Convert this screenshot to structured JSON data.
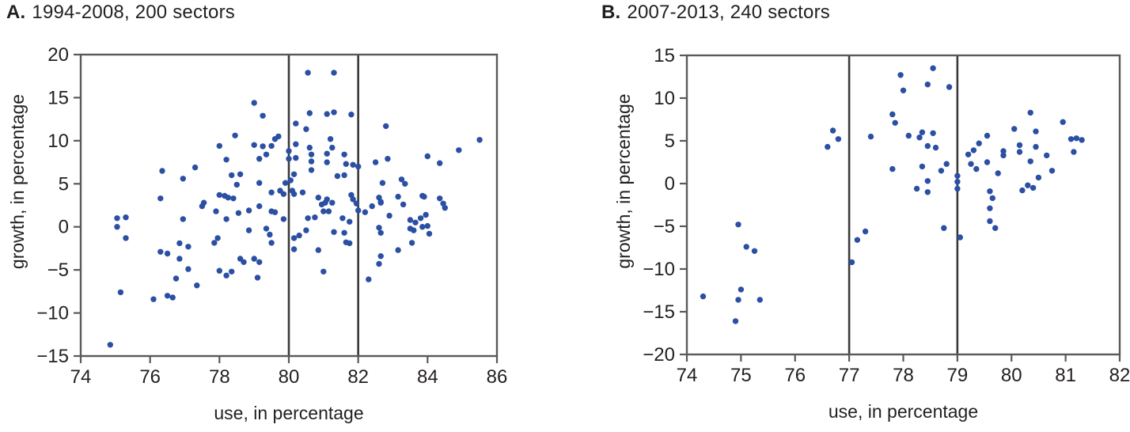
{
  "page": {
    "background": "#ffffff"
  },
  "chart_data": [
    {
      "id": "A",
      "type": "scatter",
      "panel_label": "A.",
      "title": "1994-2008, 200 sectors",
      "xlabel": "use, in percentage",
      "ylabel": "growth, in percentage",
      "xlim": [
        74,
        86
      ],
      "ylim": [
        -15,
        20
      ],
      "xticks": [
        74,
        76,
        78,
        80,
        82,
        84,
        86
      ],
      "yticks": [
        -15,
        -10,
        -5,
        0,
        5,
        10,
        15,
        20
      ],
      "vlines": [
        80,
        82
      ],
      "legend": "none",
      "grid": false,
      "point_color": "#2b4fa3",
      "axis_color": "#58595b",
      "vline_color": "#3a3a3a",
      "points": [
        [
          79.0,
          14.4
        ],
        [
          79.25,
          12.9
        ],
        [
          78.45,
          10.6
        ],
        [
          78.0,
          9.4
        ],
        [
          79.0,
          9.5
        ],
        [
          79.25,
          9.35
        ],
        [
          79.35,
          8.4
        ],
        [
          78.2,
          7.8
        ],
        [
          79.15,
          7.9
        ],
        [
          77.3,
          6.9
        ],
        [
          76.35,
          6.5
        ],
        [
          78.35,
          6.0
        ],
        [
          78.6,
          6.1
        ],
        [
          76.95,
          5.6
        ],
        [
          78.5,
          4.9
        ],
        [
          79.15,
          5.1
        ],
        [
          76.3,
          3.3
        ],
        [
          78.0,
          3.7
        ],
        [
          78.15,
          3.6
        ],
        [
          78.25,
          3.4
        ],
        [
          78.4,
          3.3
        ],
        [
          77.55,
          2.8
        ],
        [
          80.55,
          17.9
        ],
        [
          81.3,
          17.9
        ],
        [
          80.6,
          13.2
        ],
        [
          81.1,
          13.1
        ],
        [
          81.3,
          13.3
        ],
        [
          81.8,
          13.05
        ],
        [
          80.2,
          12.0
        ],
        [
          80.5,
          11.35
        ],
        [
          82.8,
          11.7
        ],
        [
          79.7,
          10.5
        ],
        [
          79.6,
          10.2
        ],
        [
          81.2,
          10.2
        ],
        [
          80.2,
          9.6
        ],
        [
          79.5,
          9.4
        ],
        [
          80.6,
          9.2
        ],
        [
          81.25,
          9.2
        ],
        [
          80.0,
          8.8
        ],
        [
          80.65,
          8.4
        ],
        [
          81.1,
          8.5
        ],
        [
          81.6,
          8.4
        ],
        [
          80.0,
          7.9
        ],
        [
          80.2,
          8.0
        ],
        [
          80.65,
          7.6
        ],
        [
          81.1,
          7.5
        ],
        [
          81.65,
          7.3
        ],
        [
          81.85,
          7.2
        ],
        [
          82.0,
          7.0
        ],
        [
          82.5,
          7.5
        ],
        [
          82.85,
          7.9
        ],
        [
          84.0,
          8.2
        ],
        [
          84.35,
          7.4
        ],
        [
          84.9,
          8.9
        ],
        [
          85.5,
          10.1
        ],
        [
          80.15,
          6.1
        ],
        [
          80.65,
          6.6
        ],
        [
          81.4,
          5.9
        ],
        [
          81.6,
          6.0
        ],
        [
          79.9,
          5.1
        ],
        [
          80.05,
          5.4
        ],
        [
          82.7,
          5.1
        ],
        [
          83.25,
          5.5
        ],
        [
          83.35,
          5.0
        ],
        [
          83.9,
          3.5
        ],
        [
          79.75,
          4.2
        ],
        [
          79.85,
          3.8
        ],
        [
          79.5,
          4.0
        ],
        [
          80.1,
          4.2
        ],
        [
          80.15,
          3.8
        ],
        [
          80.4,
          4.0
        ],
        [
          80.85,
          3.4
        ],
        [
          81.1,
          3.2
        ],
        [
          81.25,
          2.8
        ],
        [
          81.8,
          3.7
        ],
        [
          81.85,
          3.2
        ],
        [
          82.6,
          3.4
        ],
        [
          82.65,
          2.9
        ],
        [
          83.15,
          3.5
        ],
        [
          83.85,
          3.6
        ],
        [
          75.05,
          1.0
        ],
        [
          75.3,
          1.1
        ],
        [
          75.05,
          0.0
        ],
        [
          75.3,
          -1.3
        ],
        [
          76.95,
          0.9
        ],
        [
          77.5,
          2.4
        ],
        [
          77.9,
          1.8
        ],
        [
          78.2,
          0.9
        ],
        [
          78.55,
          1.6
        ],
        [
          78.85,
          1.9
        ],
        [
          79.15,
          2.4
        ],
        [
          79.5,
          1.8
        ],
        [
          79.6,
          1.7
        ],
        [
          79.85,
          0.9
        ],
        [
          76.3,
          -2.9
        ],
        [
          76.5,
          -3.1
        ],
        [
          76.85,
          -1.9
        ],
        [
          77.1,
          -2.3
        ],
        [
          76.85,
          -3.7
        ],
        [
          77.1,
          -4.9
        ],
        [
          76.75,
          -6.0
        ],
        [
          77.35,
          -6.8
        ],
        [
          77.85,
          -1.85
        ],
        [
          77.95,
          -1.3
        ],
        [
          78.0,
          -5.1
        ],
        [
          78.2,
          -5.65
        ],
        [
          78.35,
          -5.2
        ],
        [
          78.6,
          -3.7
        ],
        [
          78.7,
          -4.1
        ],
        [
          78.85,
          -0.4
        ],
        [
          79.0,
          -3.7
        ],
        [
          79.15,
          -4.1
        ],
        [
          79.45,
          -0.9
        ],
        [
          79.5,
          -1.85
        ],
        [
          79.1,
          -5.9
        ],
        [
          75.15,
          -7.6
        ],
        [
          76.1,
          -8.4
        ],
        [
          76.5,
          -8.0
        ],
        [
          76.65,
          -8.2
        ],
        [
          74.85,
          -13.7
        ],
        [
          79.35,
          -0.2
        ],
        [
          80.55,
          1.0
        ],
        [
          80.75,
          1.1
        ],
        [
          81.0,
          1.8
        ],
        [
          81.15,
          1.8
        ],
        [
          80.95,
          2.6
        ],
        [
          81.05,
          2.8
        ],
        [
          80.15,
          -1.3
        ],
        [
          80.3,
          -1.0
        ],
        [
          80.5,
          -0.4
        ],
        [
          80.15,
          -2.6
        ],
        [
          80.85,
          -2.7
        ],
        [
          81.3,
          -0.6
        ],
        [
          81.55,
          1.0
        ],
        [
          81.6,
          -0.7
        ],
        [
          81.75,
          0.6
        ],
        [
          81.65,
          -1.8
        ],
        [
          81.75,
          -1.9
        ],
        [
          81.0,
          -5.2
        ],
        [
          81.95,
          2.7
        ],
        [
          82.0,
          1.9
        ],
        [
          82.2,
          1.7
        ],
        [
          82.4,
          2.4
        ],
        [
          82.65,
          2.8
        ],
        [
          82.9,
          1.3
        ],
        [
          82.6,
          -0.1
        ],
        [
          82.65,
          -0.7
        ],
        [
          83.3,
          2.6
        ],
        [
          83.5,
          0.8
        ],
        [
          83.5,
          -0.2
        ],
        [
          83.55,
          -1.85
        ],
        [
          83.15,
          -2.7
        ],
        [
          82.65,
          -3.4
        ],
        [
          82.6,
          -4.3
        ],
        [
          82.3,
          -6.1
        ],
        [
          83.65,
          0.5
        ],
        [
          83.85,
          0.0
        ],
        [
          84.0,
          0.1
        ],
        [
          83.6,
          -0.4
        ],
        [
          84.05,
          -0.8
        ],
        [
          83.95,
          1.4
        ],
        [
          83.8,
          1.0
        ],
        [
          84.35,
          3.3
        ],
        [
          84.45,
          2.7
        ],
        [
          84.5,
          2.2
        ]
      ]
    },
    {
      "id": "B",
      "type": "scatter",
      "panel_label": "B.",
      "title": "2007-2013, 240 sectors",
      "xlabel": "use, in percentage",
      "ylabel": "growth, in percentage",
      "xlim": [
        74,
        82
      ],
      "ylim": [
        -20,
        15
      ],
      "xticks": [
        74,
        75,
        76,
        77,
        78,
        79,
        80,
        81,
        82
      ],
      "yticks": [
        -20,
        -15,
        -10,
        -5,
        0,
        5,
        10,
        15
      ],
      "vlines": [
        77,
        79
      ],
      "legend": "none",
      "grid": false,
      "point_color": "#2b4fa3",
      "axis_color": "#58595b",
      "vline_color": "#3a3a3a",
      "points": [
        [
          76.7,
          6.2
        ],
        [
          76.8,
          5.2
        ],
        [
          76.6,
          4.3
        ],
        [
          77.4,
          5.5
        ],
        [
          78.55,
          13.5
        ],
        [
          77.95,
          12.7
        ],
        [
          78.45,
          11.6
        ],
        [
          78.85,
          11.3
        ],
        [
          78.0,
          10.9
        ],
        [
          77.8,
          8.1
        ],
        [
          77.85,
          7.1
        ],
        [
          78.1,
          5.6
        ],
        [
          78.35,
          6.0
        ],
        [
          78.55,
          5.9
        ],
        [
          78.3,
          5.4
        ],
        [
          78.45,
          4.4
        ],
        [
          78.6,
          4.2
        ],
        [
          77.8,
          1.7
        ],
        [
          78.35,
          2.0
        ],
        [
          78.7,
          1.5
        ],
        [
          78.8,
          2.3
        ],
        [
          78.45,
          0.3
        ],
        [
          78.25,
          -0.6
        ],
        [
          78.45,
          -1.0
        ],
        [
          79.0,
          0.9
        ],
        [
          79.0,
          0.2
        ],
        [
          79.0,
          -0.6
        ],
        [
          79.2,
          3.4
        ],
        [
          79.3,
          3.9
        ],
        [
          79.4,
          4.7
        ],
        [
          79.55,
          5.6
        ],
        [
          79.25,
          2.3
        ],
        [
          79.35,
          1.7
        ],
        [
          79.55,
          2.5
        ],
        [
          79.85,
          3.8
        ],
        [
          79.85,
          3.3
        ],
        [
          79.75,
          1.2
        ],
        [
          80.05,
          6.4
        ],
        [
          80.35,
          8.3
        ],
        [
          80.45,
          6.1
        ],
        [
          80.45,
          4.3
        ],
        [
          80.15,
          4.5
        ],
        [
          80.15,
          3.7
        ],
        [
          80.35,
          2.6
        ],
        [
          80.65,
          3.3
        ],
        [
          80.75,
          1.5
        ],
        [
          80.95,
          7.2
        ],
        [
          81.15,
          3.7
        ],
        [
          81.1,
          5.2
        ],
        [
          81.2,
          5.3
        ],
        [
          81.3,
          5.1
        ],
        [
          79.6,
          -0.9
        ],
        [
          79.65,
          -1.7
        ],
        [
          80.2,
          -0.8
        ],
        [
          80.3,
          -0.2
        ],
        [
          80.4,
          -0.5
        ],
        [
          80.5,
          0.7
        ],
        [
          74.3,
          -13.2
        ],
        [
          74.95,
          -4.8
        ],
        [
          75.1,
          -7.4
        ],
        [
          75.25,
          -7.9
        ],
        [
          75.0,
          -12.4
        ],
        [
          74.95,
          -13.6
        ],
        [
          75.35,
          -13.6
        ],
        [
          74.9,
          -16.1
        ],
        [
          77.05,
          -9.2
        ],
        [
          77.15,
          -6.6
        ],
        [
          77.3,
          -5.6
        ],
        [
          78.75,
          -5.2
        ],
        [
          79.05,
          -6.3
        ],
        [
          79.6,
          -2.9
        ],
        [
          79.6,
          -4.4
        ],
        [
          79.7,
          -5.2
        ]
      ]
    }
  ]
}
